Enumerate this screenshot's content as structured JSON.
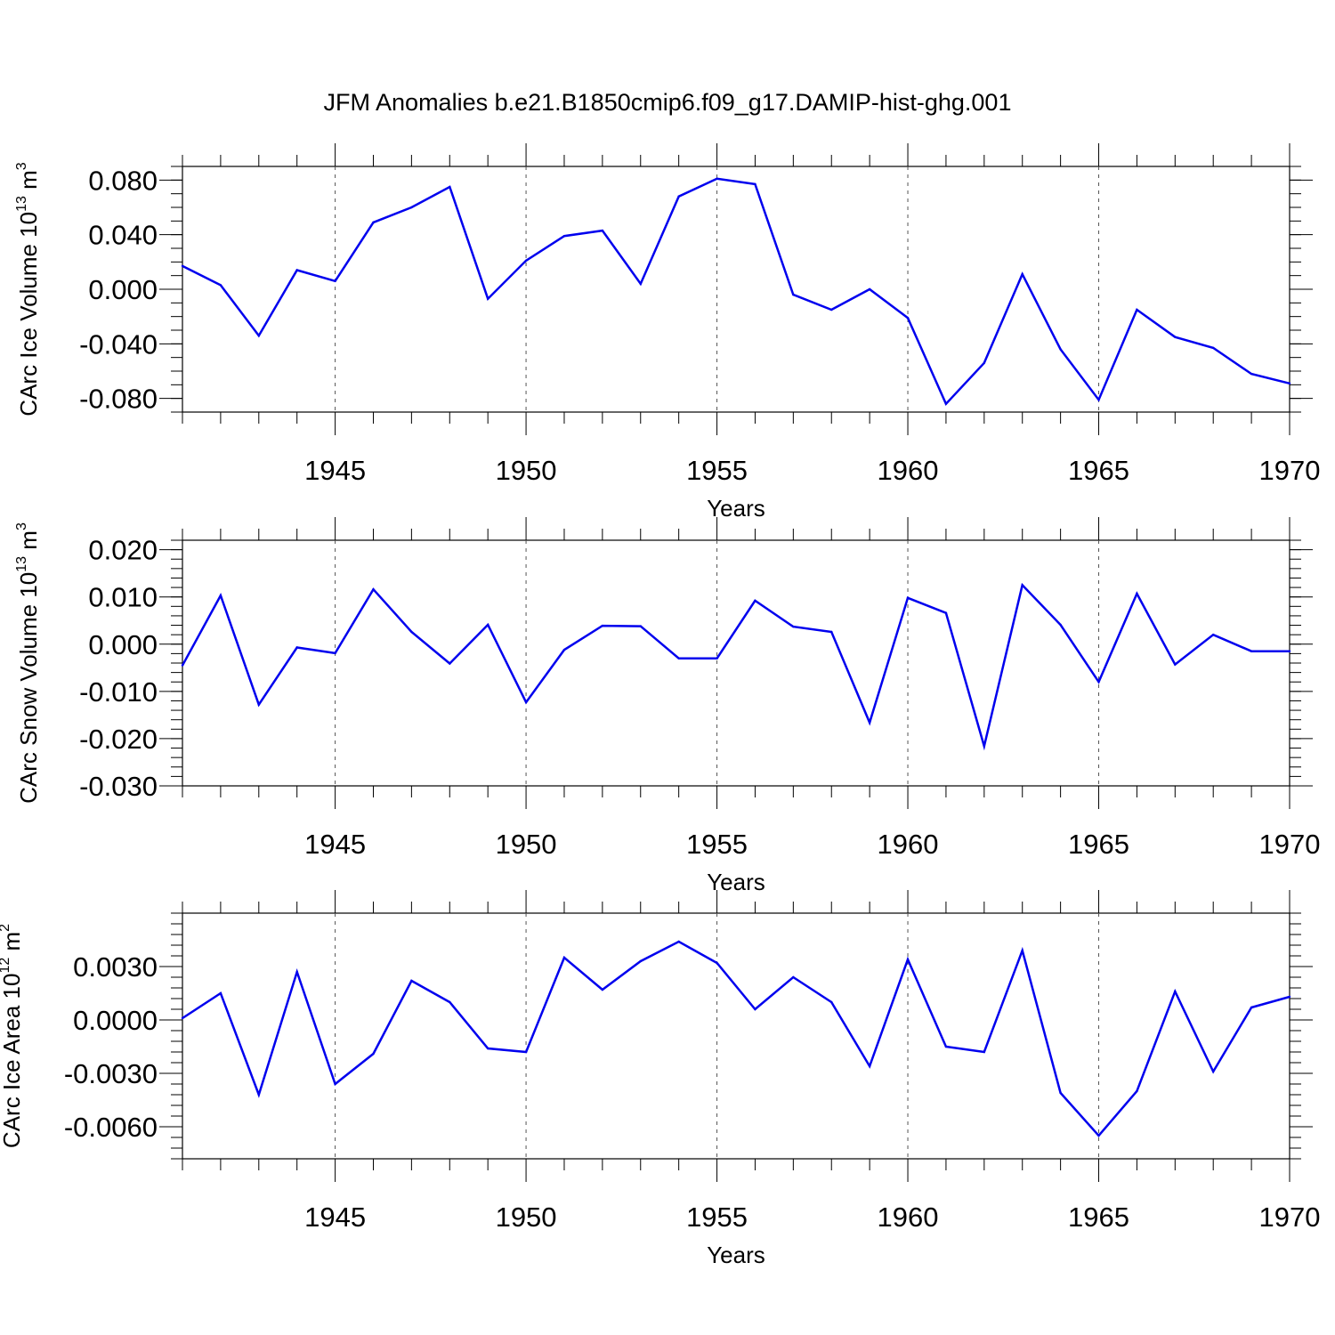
{
  "title": "JFM Anomalies b.e21.B1850cmip6.f09_g17.DAMIP-hist-ghg.001",
  "line_color": "#0000ee",
  "chart_data": [
    {
      "type": "line",
      "name": "ice-volume",
      "ylabel": "CArc Ice Volume 10",
      "ylabel_exp": "13",
      "ylabel_unit": " m",
      "ylabel_unit_exp": "3",
      "xlabel": "Years",
      "xlim": [
        1941,
        1970
      ],
      "ylim": [
        -0.09,
        0.09
      ],
      "yticks": [
        -0.08,
        -0.04,
        0.0,
        0.04,
        0.08
      ],
      "ytick_labels": [
        "-0.080",
        "-0.040",
        "0.000",
        "0.040",
        "0.080"
      ],
      "yminor_step": 0.01,
      "xticks": [
        1945,
        1950,
        1955,
        1960,
        1965,
        1970
      ],
      "xtick_labels": [
        "1945",
        "1950",
        "1955",
        "1960",
        "1965",
        "1970"
      ],
      "x": [
        1941,
        1942,
        1943,
        1944,
        1945,
        1946,
        1947,
        1948,
        1949,
        1950,
        1951,
        1952,
        1953,
        1954,
        1955,
        1956,
        1957,
        1958,
        1959,
        1960,
        1961,
        1962,
        1963,
        1964,
        1965,
        1966,
        1967,
        1968,
        1969,
        1970
      ],
      "values": [
        0.017,
        0.003,
        -0.034,
        0.014,
        0.006,
        0.049,
        0.06,
        0.075,
        -0.007,
        0.021,
        0.039,
        0.043,
        0.004,
        0.068,
        0.081,
        0.077,
        -0.004,
        -0.015,
        0.0,
        -0.021,
        -0.084,
        -0.054,
        0.011,
        -0.044,
        -0.081,
        -0.015,
        -0.035,
        -0.043,
        -0.062,
        -0.069
      ]
    },
    {
      "type": "line",
      "name": "snow-volume",
      "ylabel": "CArc Snow Volume 10",
      "ylabel_exp": "13",
      "ylabel_unit": " m",
      "ylabel_unit_exp": "3",
      "xlabel": "Years",
      "xlim": [
        1941,
        1970
      ],
      "ylim": [
        -0.03,
        0.022
      ],
      "yticks": [
        -0.03,
        -0.02,
        -0.01,
        0.0,
        0.01,
        0.02
      ],
      "ytick_labels": [
        "-0.030",
        "-0.020",
        "-0.010",
        "0.000",
        "0.010",
        "0.020"
      ],
      "yminor_step": 0.002,
      "xticks": [
        1945,
        1950,
        1955,
        1960,
        1965,
        1970
      ],
      "xtick_labels": [
        "1945",
        "1950",
        "1955",
        "1960",
        "1965",
        "1970"
      ],
      "x": [
        1941,
        1942,
        1943,
        1944,
        1945,
        1946,
        1947,
        1948,
        1949,
        1950,
        1951,
        1952,
        1953,
        1954,
        1955,
        1956,
        1957,
        1958,
        1959,
        1960,
        1961,
        1962,
        1963,
        1964,
        1965,
        1966,
        1967,
        1968,
        1969,
        1970
      ],
      "values": [
        -0.0045,
        0.0103,
        -0.0128,
        -0.0007,
        -0.0019,
        0.0116,
        0.0026,
        -0.0041,
        0.0041,
        -0.0123,
        -0.0012,
        0.0039,
        0.0038,
        -0.003,
        -0.003,
        0.0092,
        0.0037,
        0.0026,
        -0.0166,
        0.0098,
        0.0066,
        -0.0216,
        0.0125,
        0.0041,
        -0.008,
        0.0107,
        -0.0043,
        0.002,
        -0.0015,
        -0.0015
      ]
    },
    {
      "type": "line",
      "name": "ice-area",
      "ylabel": "CArc Ice Area 10",
      "ylabel_exp": "12",
      "ylabel_unit": " m",
      "ylabel_unit_exp": "2",
      "xlabel": "Years",
      "xlim": [
        1941,
        1970
      ],
      "ylim": [
        -0.0078,
        0.006
      ],
      "yticks": [
        -0.006,
        -0.003,
        0.0,
        0.003
      ],
      "ytick_labels": [
        "-0.0060",
        "-0.0030",
        "0.0000",
        "0.0030"
      ],
      "yminor_step": 0.0006,
      "xticks": [
        1945,
        1950,
        1955,
        1960,
        1965,
        1970
      ],
      "xtick_labels": [
        "1945",
        "1950",
        "1955",
        "1960",
        "1965",
        "1970"
      ],
      "x": [
        1941,
        1942,
        1943,
        1944,
        1945,
        1946,
        1947,
        1948,
        1949,
        1950,
        1951,
        1952,
        1953,
        1954,
        1955,
        1956,
        1957,
        1958,
        1959,
        1960,
        1961,
        1962,
        1963,
        1964,
        1965,
        1966,
        1967,
        1968,
        1969,
        1970
      ],
      "values": [
        0.0001,
        0.0015,
        -0.0042,
        0.0027,
        -0.0036,
        -0.0019,
        0.0022,
        0.001,
        -0.0016,
        -0.0018,
        0.0035,
        0.0017,
        0.0033,
        0.0044,
        0.0032,
        0.0006,
        0.0024,
        0.001,
        -0.0026,
        0.0034,
        -0.0015,
        -0.0018,
        0.0039,
        -0.0041,
        -0.0065,
        -0.004,
        0.0016,
        -0.0029,
        0.0007,
        0.0013
      ]
    }
  ]
}
